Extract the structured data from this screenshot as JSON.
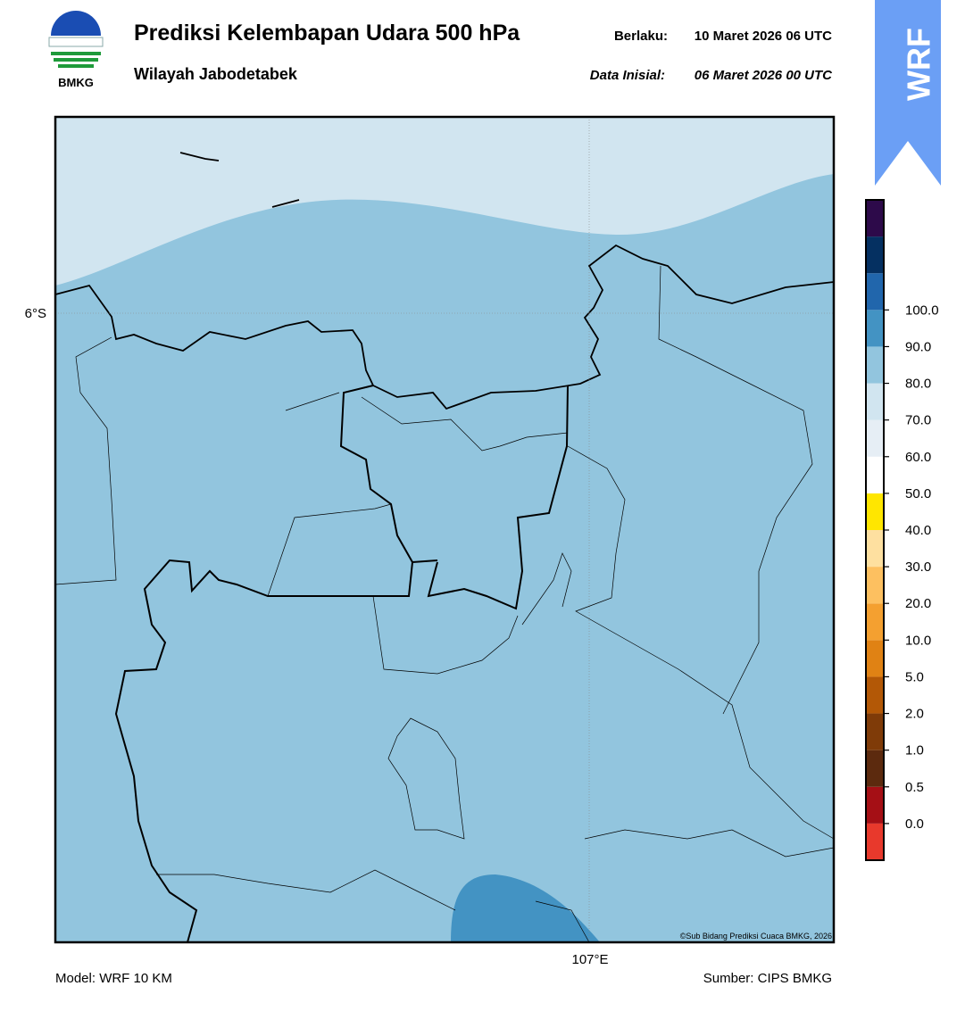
{
  "header": {
    "title": "Prediksi Kelembapan Udara 500 hPa",
    "subtitle": "Wilayah Jabodetabek",
    "valid_label": "Berlaku:",
    "valid_time": "10 Maret 2026 06 UTC",
    "init_label": "Data Inisial:",
    "init_time": "06 Maret 2026 00 UTC",
    "logo_text": "BMKG",
    "model_badge": "WRF"
  },
  "map": {
    "lat_label": "6°S",
    "lon_label": "107°E",
    "credit": "©Sub Bidang Prediksi Cuaca BMKG, 2026",
    "fill_colors": {
      "dry": "#d1e5f0",
      "moist": "#92c5de",
      "wet": "#4393c3"
    }
  },
  "colorbar": {
    "ticks": [
      {
        "value": 0,
        "label": "0.0"
      },
      {
        "value": 0.5,
        "label": "0.5"
      },
      {
        "value": 1,
        "label": "1.0"
      },
      {
        "value": 2,
        "label": "2.0"
      },
      {
        "value": 5,
        "label": "5.0"
      },
      {
        "value": 10,
        "label": "10.0"
      },
      {
        "value": 20,
        "label": "20.0"
      },
      {
        "value": 30,
        "label": "30.0"
      },
      {
        "value": 40,
        "label": "40.0"
      },
      {
        "value": 50,
        "label": "50.0"
      },
      {
        "value": 60,
        "label": "60.0"
      },
      {
        "value": 70,
        "label": "70.0"
      },
      {
        "value": 80,
        "label": "80.0"
      },
      {
        "value": 90,
        "label": "90.0"
      },
      {
        "value": 100,
        "label": "100.0"
      }
    ],
    "colors": [
      "#e8392c",
      "#a50f15",
      "#5c2a0e",
      "#7f3b08",
      "#b35806",
      "#e08214",
      "#f4a030",
      "#fdc060",
      "#fee0a0",
      "#ffe600",
      "#ffffff",
      "#e6eef5",
      "#d1e5f0",
      "#92c5de",
      "#4393c3",
      "#2166ac",
      "#053061",
      "#2d0a4a"
    ]
  },
  "footer": {
    "model": "Model: WRF 10 KM",
    "source": "Sumber: CIPS BMKG"
  }
}
